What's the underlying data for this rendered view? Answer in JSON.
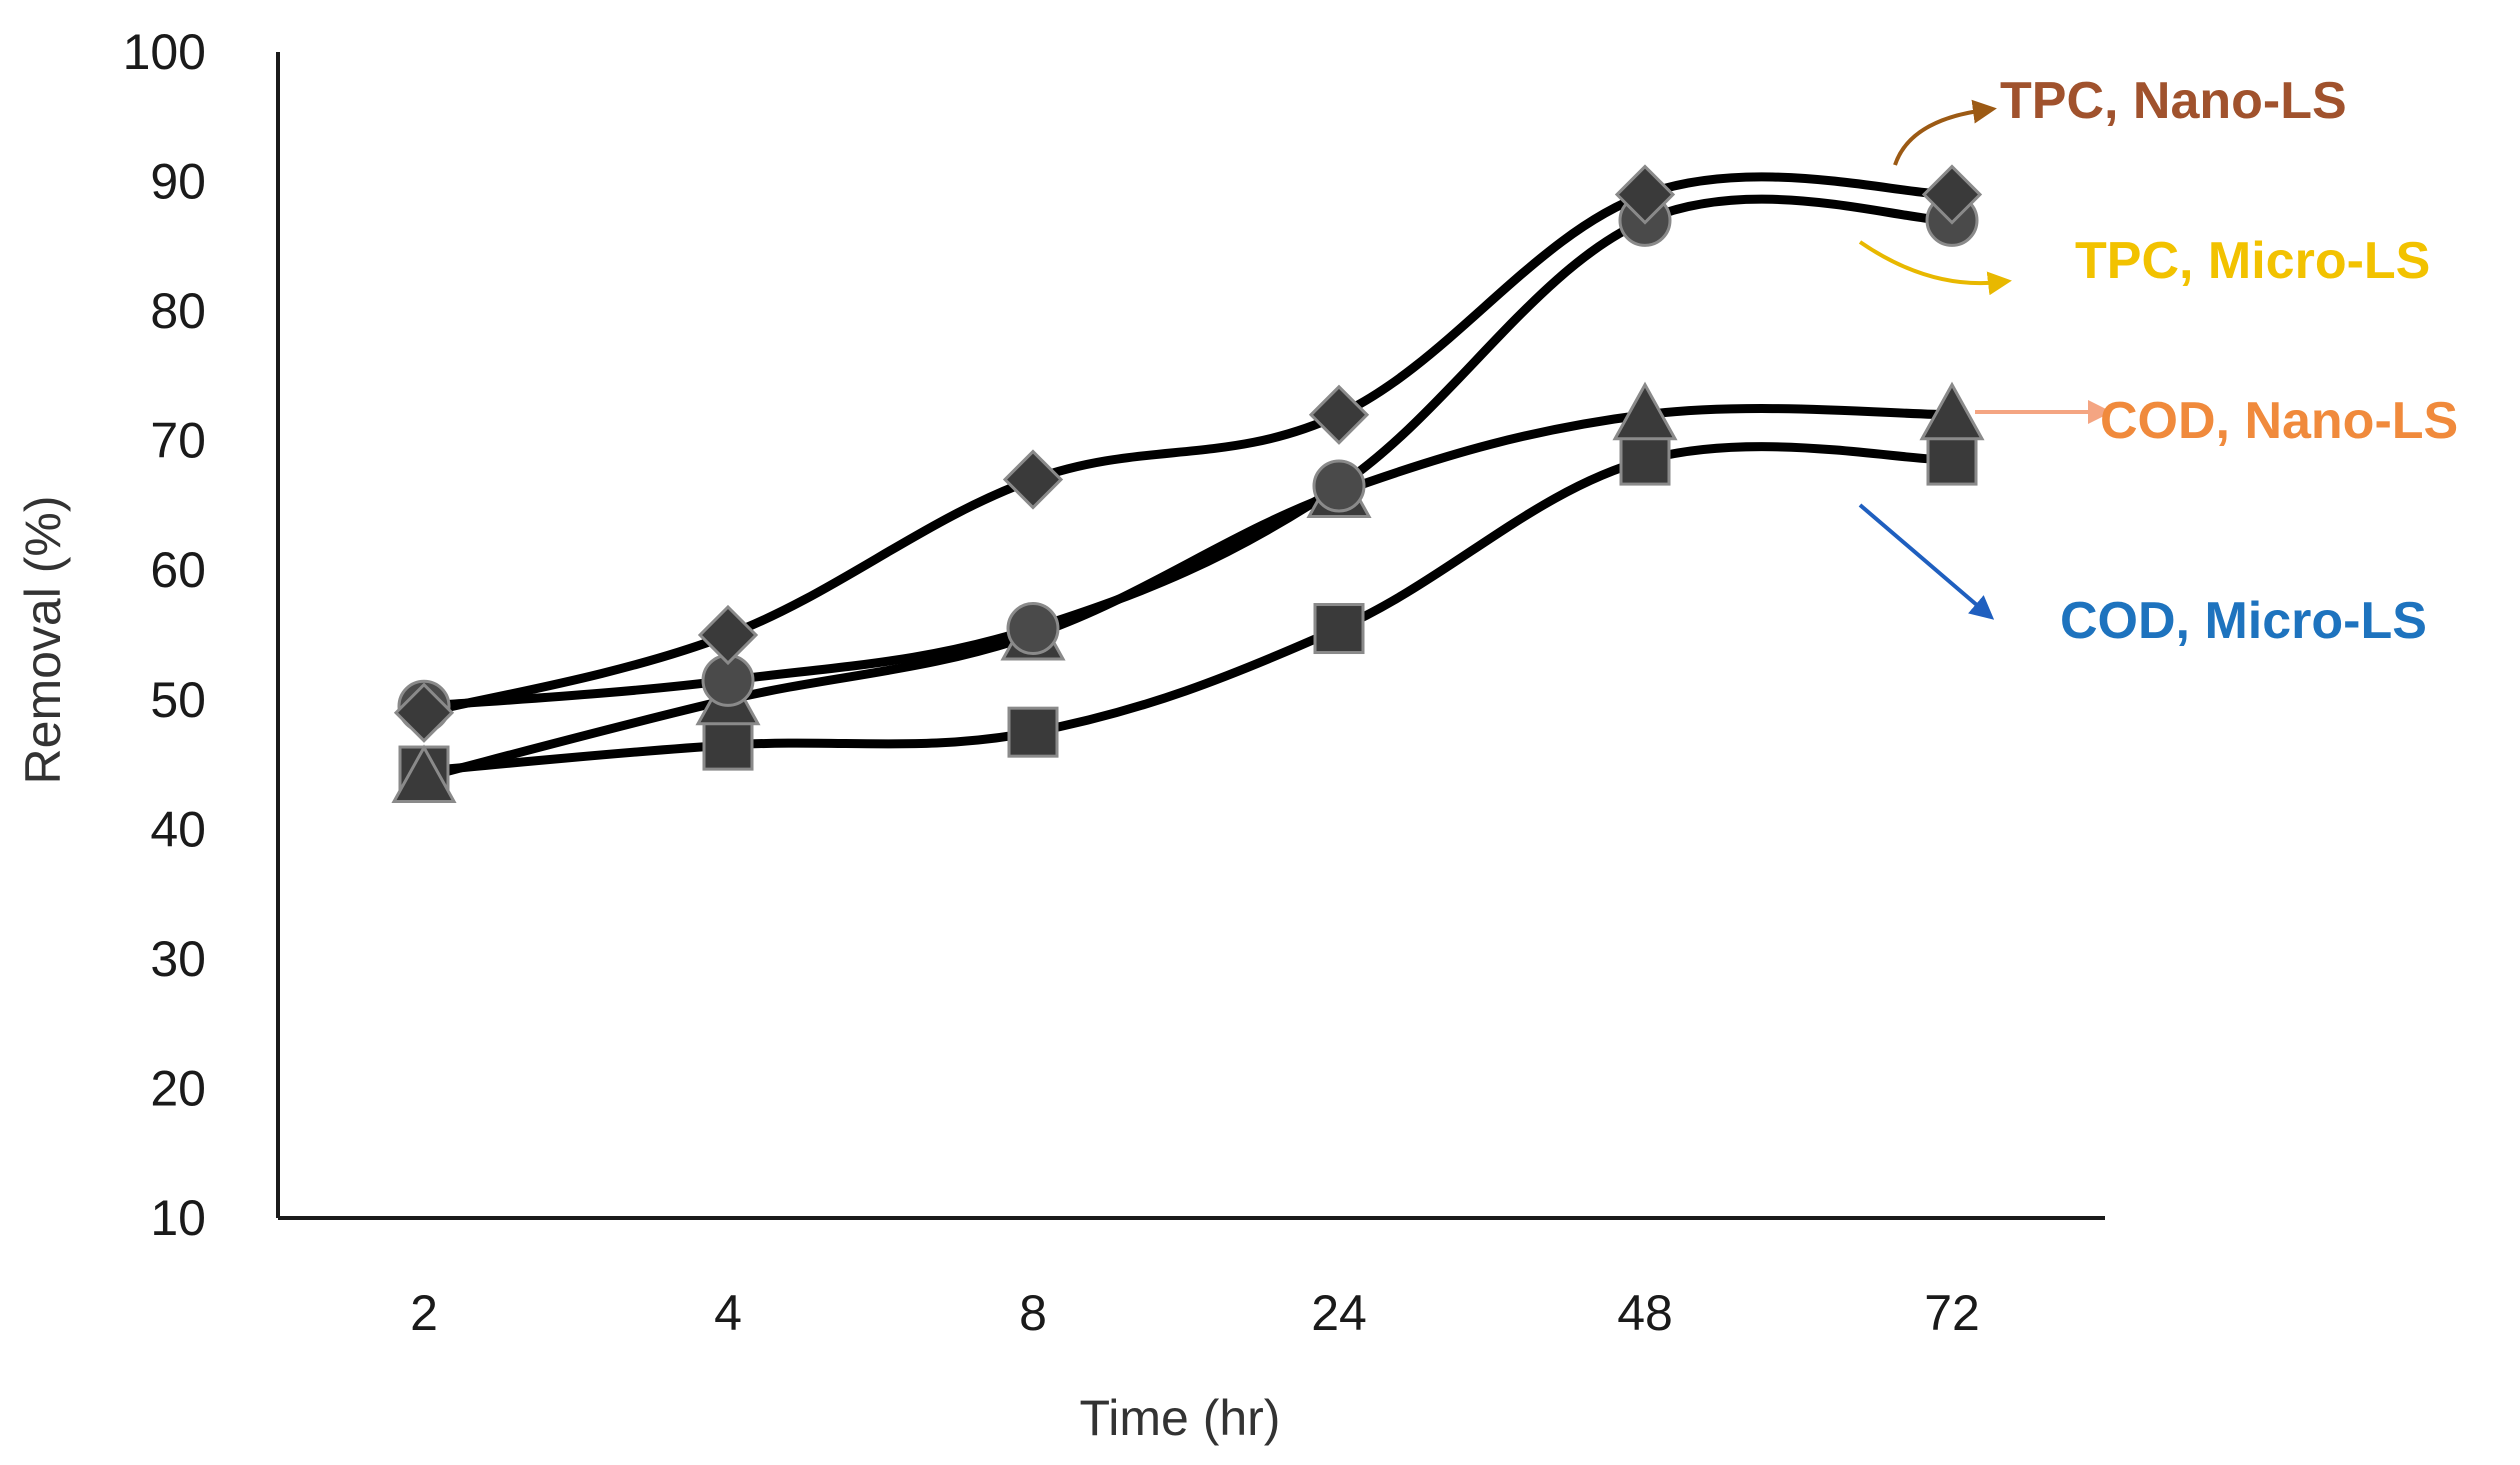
{
  "chart_data": {
    "type": "line",
    "title": "",
    "xlabel": "Time (hr)",
    "ylabel": "Removal (%)",
    "categories": [
      "2",
      "4",
      "8",
      "24",
      "48",
      "72"
    ],
    "ylim": [
      10,
      100
    ],
    "yticks": [
      10,
      20,
      30,
      40,
      50,
      60,
      70,
      80,
      90,
      100
    ],
    "grid": false,
    "legend_position": "right",
    "series": [
      {
        "name": "TPC, Nano-LS",
        "marker": "diamond",
        "values": [
          49,
          55,
          67,
          72,
          89,
          89
        ],
        "label_color": "#A0522D",
        "arrow_color": "#9C5A14"
      },
      {
        "name": "TPC, Micro-LS",
        "marker": "circle",
        "values": [
          49.5,
          51.5,
          55.5,
          66.5,
          87,
          87
        ],
        "label_color": "#F2C200",
        "arrow_color": "#E8B800"
      },
      {
        "name": "COD, Nano-LS",
        "marker": "triangle",
        "values": [
          44,
          50,
          55,
          66,
          72,
          72
        ],
        "label_color": "#F08A3C",
        "arrow_color": "#F4A582"
      },
      {
        "name": "COD, Micro-LS",
        "marker": "square",
        "values": [
          44.5,
          46.5,
          47.5,
          55.5,
          68.5,
          68.5
        ],
        "label_color": "#1E73BE",
        "arrow_color": "#1F5FBF"
      }
    ]
  }
}
